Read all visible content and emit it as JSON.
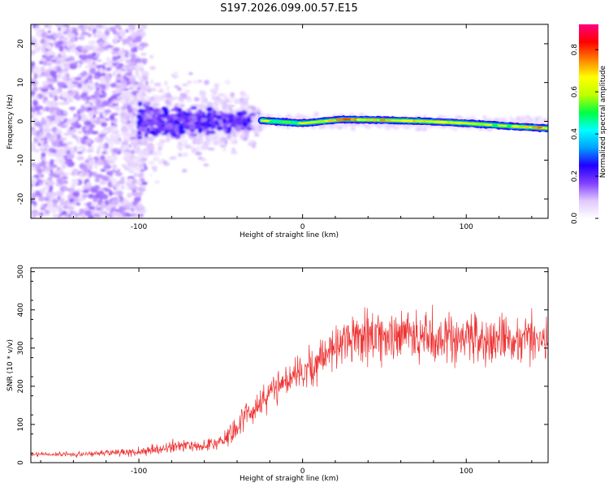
{
  "chart_data": [
    {
      "type": "heatmap",
      "title": "S197.2026.099.00.57.E15",
      "xlabel": "Height of straight line (km)",
      "ylabel": "Frequency (Hz)",
      "xlim": [
        -166,
        150
      ],
      "ylim": [
        -25,
        25
      ],
      "xticks": [
        -100,
        0,
        100
      ],
      "yticks": [
        -20,
        -10,
        0,
        10,
        20
      ],
      "colorbar": {
        "label": "Normalized spectral amplitude",
        "range": [
          0,
          0.92
        ],
        "ticks": [
          0.0,
          0.2,
          0.4,
          0.6,
          0.8
        ],
        "colormap": [
          "#ffffff",
          "#e0c8ff",
          "#8040ff",
          "#2000ff",
          "#00a0ff",
          "#00ffff",
          "#00ff40",
          "#c0ff00",
          "#ffff00",
          "#ff8000",
          "#ff0000",
          "#ff0080"
        ]
      },
      "ridge": {
        "description_points_km": [
          -25,
          0,
          25,
          50,
          75,
          100,
          125,
          150
        ],
        "frequency_hz": [
          0.2,
          -0.5,
          0.5,
          0.3,
          0.0,
          -0.5,
          -1.2,
          -1.8
        ],
        "peak_amplitude": [
          0.7,
          0.6,
          0.9,
          0.85,
          0.8,
          0.75,
          0.7,
          0.95
        ]
      }
    },
    {
      "type": "line",
      "xlabel": "Height of straight line (km)",
      "ylabel": "SNR (10 * v/v)",
      "xlim": [
        -166,
        150
      ],
      "ylim": [
        0,
        510
      ],
      "xticks": [
        -100,
        0,
        100
      ],
      "yticks": [
        0,
        100,
        200,
        300,
        400,
        500
      ],
      "series": [
        {
          "name": "SNR",
          "color": "#ee3333",
          "x": [
            -166,
            -140,
            -120,
            -100,
            -90,
            -80,
            -70,
            -60,
            -50,
            -45,
            -40,
            -35,
            -30,
            -25,
            -20,
            -15,
            -10,
            -5,
            0,
            5,
            10,
            15,
            20,
            25,
            30,
            40,
            50,
            60,
            70,
            80,
            90,
            100,
            110,
            120,
            130,
            140,
            150
          ],
          "y": [
            22,
            22,
            25,
            28,
            35,
            40,
            45,
            45,
            55,
            70,
            95,
            120,
            140,
            165,
            185,
            200,
            215,
            230,
            240,
            250,
            265,
            290,
            310,
            320,
            330,
            330,
            335,
            340,
            335,
            330,
            325,
            325,
            330,
            320,
            320,
            325,
            330
          ],
          "noise_amplitude": [
            6,
            8,
            10,
            12,
            15,
            18,
            18,
            20,
            25,
            30,
            35,
            40,
            45,
            45,
            45,
            50,
            55,
            55,
            55,
            60,
            60,
            65,
            70,
            70,
            75,
            80,
            80,
            80,
            80,
            75,
            75,
            75,
            75,
            75,
            75,
            70,
            70
          ]
        }
      ]
    }
  ]
}
